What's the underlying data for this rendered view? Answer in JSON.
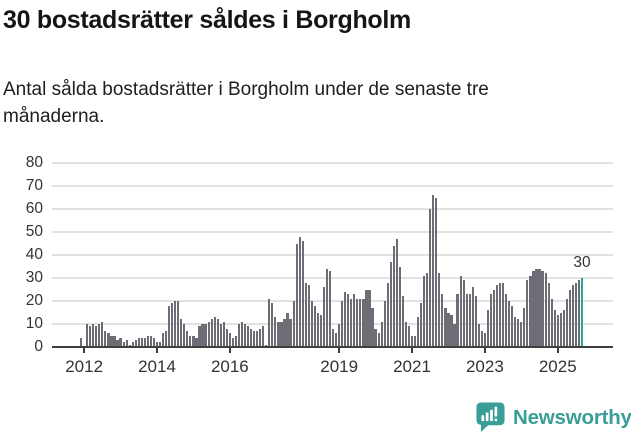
{
  "header": {
    "title": "30 bostadsrätter såldes i Borgholm",
    "subtitle_lines": [
      "Antal sålda bostadsrätter i Borgholm under de senaste tre",
      "månaderna."
    ]
  },
  "chart_data": {
    "type": "bar",
    "title": "30 bostadsrätter såldes i Borgholm",
    "xlabel": "",
    "ylabel": "",
    "ylim": [
      0,
      80
    ],
    "yticks": [
      0,
      10,
      20,
      30,
      40,
      50,
      60,
      70,
      80
    ],
    "grid": "horizontal",
    "start_month": "2011-12",
    "frequency": "monthly",
    "x_ticks": [
      {
        "label": "2012",
        "month_index": 1
      },
      {
        "label": "2014",
        "month_index": 25
      },
      {
        "label": "2016",
        "month_index": 49
      },
      {
        "label": "2019",
        "month_index": 85
      },
      {
        "label": "2021",
        "month_index": 109
      },
      {
        "label": "2023",
        "month_index": 133
      },
      {
        "label": "2025",
        "month_index": 157
      }
    ],
    "bar_color": "#6d6d76",
    "highlight": {
      "index": 165,
      "label": "30",
      "color": "#2aa6a1"
    },
    "values": [
      4,
      0,
      10,
      9,
      10,
      9,
      10,
      11,
      7,
      6,
      5,
      5,
      3,
      4,
      2,
      3,
      1,
      2,
      3,
      4,
      4,
      4,
      5,
      5,
      4,
      2,
      2,
      6,
      7,
      18,
      19,
      20,
      20,
      12,
      10,
      7,
      5,
      5,
      4,
      9,
      10,
      10,
      11,
      12,
      13,
      12,
      10,
      11,
      8,
      6,
      4,
      5,
      10,
      11,
      10,
      9,
      8,
      7,
      7,
      8,
      9,
      1,
      21,
      19,
      13,
      11,
      11,
      12,
      15,
      12,
      20,
      45,
      48,
      46,
      28,
      27,
      20,
      18,
      15,
      14,
      26,
      34,
      33,
      8,
      6,
      10,
      20,
      24,
      23,
      21,
      23,
      21,
      21,
      21,
      25,
      25,
      17,
      8,
      6,
      11,
      20,
      28,
      37,
      44,
      47,
      35,
      22,
      11,
      9,
      5,
      5,
      13,
      19,
      31,
      32,
      60,
      66,
      65,
      32,
      23,
      17,
      15,
      14,
      10,
      23,
      31,
      29,
      23,
      23,
      26,
      22,
      10,
      7,
      6,
      16,
      23,
      25,
      27,
      28,
      28,
      23,
      20,
      18,
      13,
      12,
      11,
      17,
      29,
      31,
      33,
      34,
      34,
      33,
      32,
      28,
      21,
      16,
      14,
      15,
      16,
      21,
      25,
      27,
      28,
      29,
      30
    ]
  },
  "footer": {
    "brand": "Newsworthy"
  }
}
